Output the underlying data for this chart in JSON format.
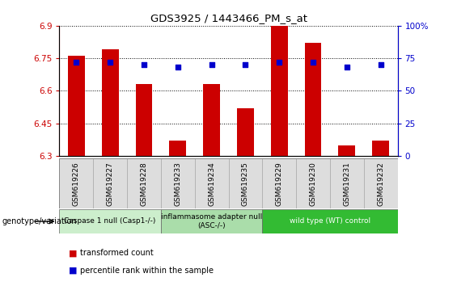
{
  "title": "GDS3925 / 1443466_PM_s_at",
  "samples": [
    "GSM619226",
    "GSM619227",
    "GSM619228",
    "GSM619233",
    "GSM619234",
    "GSM619235",
    "GSM619229",
    "GSM619230",
    "GSM619231",
    "GSM619232"
  ],
  "bar_values": [
    6.76,
    6.79,
    6.63,
    6.37,
    6.63,
    6.52,
    6.9,
    6.82,
    6.35,
    6.37
  ],
  "percentile_values": [
    72,
    72,
    70,
    68,
    70,
    70,
    72,
    72,
    68,
    70
  ],
  "bar_color": "#cc0000",
  "percentile_color": "#0000cc",
  "ymin": 6.3,
  "ymax": 6.9,
  "yticks": [
    6.3,
    6.45,
    6.6,
    6.75,
    6.9
  ],
  "right_yticks": [
    0,
    25,
    50,
    75,
    100
  ],
  "groups": [
    {
      "label": "Caspase 1 null (Casp1-/-)",
      "start": 0,
      "end": 3,
      "color": "#cceecc"
    },
    {
      "label": "inflammasome adapter null\n(ASC-/-)",
      "start": 3,
      "end": 6,
      "color": "#aaddaa"
    },
    {
      "label": "wild type (WT) control",
      "start": 6,
      "end": 10,
      "color": "#33bb33"
    }
  ],
  "bar_color_red": "#cc0000",
  "percentile_color_blue": "#0000cc",
  "tick_color_left": "#cc0000",
  "tick_color_right": "#0000cc",
  "xlabel_left": "genotype/variation",
  "legend_labels": [
    "transformed count",
    "percentile rank within the sample"
  ]
}
